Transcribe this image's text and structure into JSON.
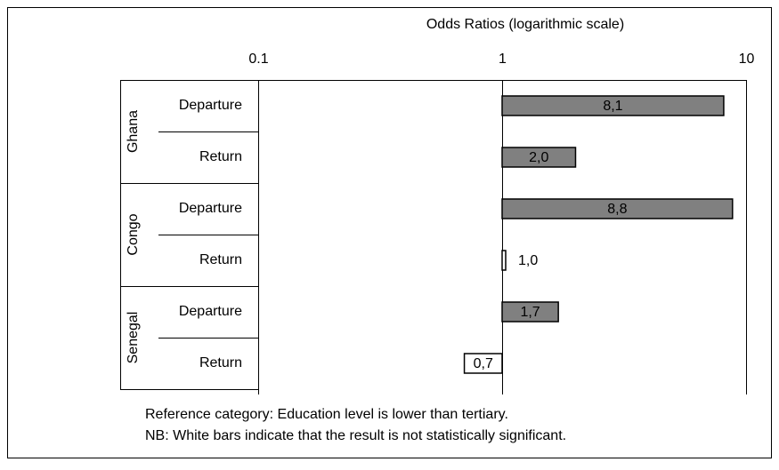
{
  "chart_data": {
    "type": "bar",
    "orientation": "horizontal",
    "xscale": "log",
    "xlabel": "Odds Ratios (logarithmic scale)",
    "groups": [
      "Ghana",
      "Congo",
      "Senegal"
    ],
    "categories": [
      "Departure",
      "Return",
      "Departure",
      "Return",
      "Departure",
      "Return"
    ],
    "values": [
      8.1,
      2.0,
      8.8,
      1.0,
      1.7,
      0.7
    ],
    "value_labels": [
      "8,1",
      "2,0",
      "8,8",
      "1,0",
      "1,7",
      "0,7"
    ],
    "colors": [
      "#808080",
      "#808080",
      "#808080",
      "#ffffff",
      "#808080",
      "#ffffff"
    ],
    "xlim": [
      0.1,
      10
    ],
    "xticks": [
      0.1,
      1,
      10
    ],
    "notes": [
      "Reference category: Education  level is lower than tertiary.",
      "NB: White bars indicate that the result is not statistically significant."
    ]
  }
}
